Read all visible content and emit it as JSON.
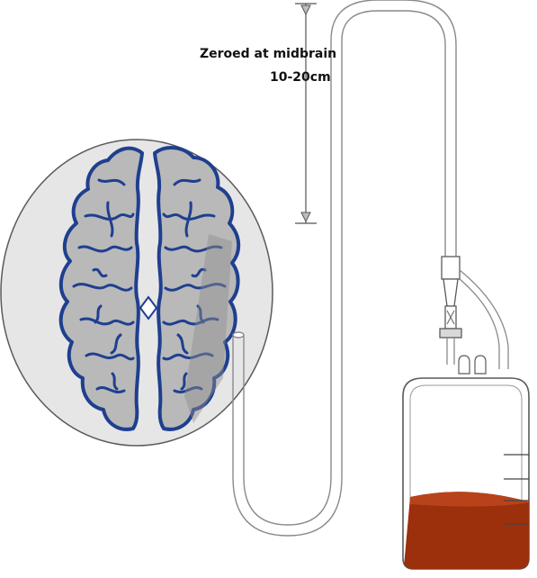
{
  "annotation": {
    "line1": "Zeroed at midbrain",
    "line2": "10-20cm"
  },
  "colors": {
    "brain_outline": "#1f3f8f",
    "brain_fill": "#b9b9b9",
    "skull_fill": "#e5e5e5",
    "skull_outline": "#555555",
    "tube": "#8a8a8a",
    "csf": "#9c2f0c",
    "csf_top": "#b8431a"
  },
  "icons": {
    "brain": "brain-icon",
    "drain_bag": "collection-bag-icon",
    "drip_chamber": "drip-chamber-icon"
  }
}
